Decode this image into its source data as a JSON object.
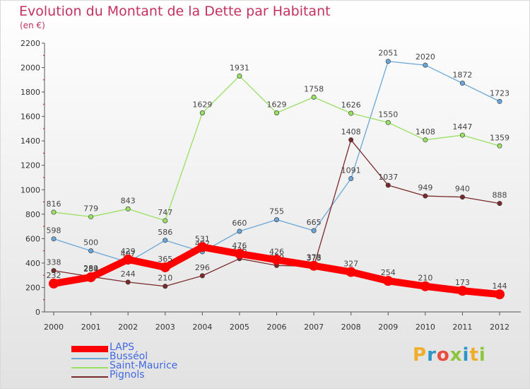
{
  "header": {
    "title": "Evolution du Montant de la Dette par Habitant",
    "subtitle": "(en €)"
  },
  "logo": {
    "text": "Proxiti",
    "colors": [
      "#f0ad2c",
      "#2e95c7",
      "#e94c3d",
      "#8cc63f",
      "#2e95c7",
      "#f0ad2c",
      "#8cc63f"
    ]
  },
  "chart_data": {
    "type": "line",
    "title": "Evolution du Montant de la Dette par Habitant",
    "subtitle": "(en €)",
    "x": [
      "2000",
      "2001",
      "2002",
      "2003",
      "2004",
      "2005",
      "2006",
      "2007",
      "2008",
      "2009",
      "2010",
      "2011",
      "2012"
    ],
    "ylim": [
      0,
      2200
    ],
    "yticks": [
      0,
      200,
      400,
      600,
      800,
      1000,
      1200,
      1400,
      1600,
      1800,
      2000,
      2200
    ],
    "grid": false,
    "legend_position": "bottom-left",
    "series": [
      {
        "name": "LAPS",
        "color": "#ff0000",
        "values": [
          232,
          284,
          429,
          365,
          531,
          476,
          426,
          378,
          327,
          254,
          210,
          173,
          144
        ]
      },
      {
        "name": "Busséol",
        "color": "#6aa7d8",
        "values": [
          598,
          500,
          407,
          586,
          492,
          660,
          755,
          665,
          1091,
          2051,
          2020,
          1872,
          1723
        ]
      },
      {
        "name": "Saint-Maurice",
        "color": "#99e065",
        "values": [
          816,
          779,
          843,
          747,
          1629,
          1931,
          1629,
          1758,
          1626,
          1550,
          1408,
          1447,
          1359
        ]
      },
      {
        "name": "Pignols",
        "color": "#7a2a2a",
        "values": [
          338,
          289,
          244,
          210,
          296,
          436,
          380,
          373,
          1408,
          1037,
          949,
          940,
          888
        ]
      }
    ]
  }
}
